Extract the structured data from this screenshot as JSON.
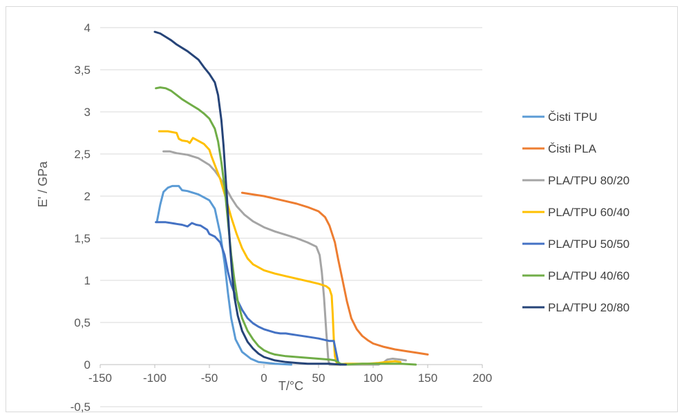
{
  "chart_data": {
    "type": "line",
    "xlabel": "T/°C",
    "ylabel": "E' / GPa",
    "xlim": [
      -150,
      200
    ],
    "ylim": [
      -0.5,
      4
    ],
    "x_ticks": [
      "-150",
      "-100",
      "-50",
      "0",
      "50",
      "100",
      "150",
      "200"
    ],
    "y_ticks": [
      "-0,5",
      "0",
      "0,5",
      "1",
      "1,5",
      "2",
      "2,5",
      "3",
      "3,5",
      "4"
    ],
    "legend_position": "right",
    "grid": "horizontal",
    "series": [
      {
        "name": "Čisti TPU",
        "color": "#5B9BD5",
        "points": [
          [
            -98,
            1.7
          ],
          [
            -95,
            1.9
          ],
          [
            -92,
            2.05
          ],
          [
            -88,
            2.1
          ],
          [
            -84,
            2.12
          ],
          [
            -78,
            2.12
          ],
          [
            -75,
            2.07
          ],
          [
            -70,
            2.06
          ],
          [
            -60,
            2.02
          ],
          [
            -50,
            1.95
          ],
          [
            -45,
            1.85
          ],
          [
            -40,
            1.55
          ],
          [
            -36,
            1.2
          ],
          [
            -33,
            0.85
          ],
          [
            -30,
            0.55
          ],
          [
            -26,
            0.3
          ],
          [
            -20,
            0.15
          ],
          [
            -12,
            0.07
          ],
          [
            -5,
            0.03
          ],
          [
            10,
            0.01
          ],
          [
            25,
            0
          ]
        ]
      },
      {
        "name": "Čisti PLA",
        "color": "#ED7D31",
        "points": [
          [
            -20,
            2.04
          ],
          [
            -10,
            2.02
          ],
          [
            0,
            2.0
          ],
          [
            10,
            1.97
          ],
          [
            20,
            1.94
          ],
          [
            30,
            1.91
          ],
          [
            40,
            1.87
          ],
          [
            50,
            1.82
          ],
          [
            56,
            1.75
          ],
          [
            60,
            1.65
          ],
          [
            65,
            1.45
          ],
          [
            68,
            1.25
          ],
          [
            72,
            1.0
          ],
          [
            76,
            0.75
          ],
          [
            80,
            0.55
          ],
          [
            85,
            0.42
          ],
          [
            90,
            0.34
          ],
          [
            95,
            0.29
          ],
          [
            100,
            0.25
          ],
          [
            110,
            0.21
          ],
          [
            120,
            0.18
          ],
          [
            130,
            0.16
          ],
          [
            140,
            0.14
          ],
          [
            150,
            0.12
          ]
        ]
      },
      {
        "name": "PLA/TPU 80/20",
        "color": "#A5A5A5",
        "points": [
          [
            -92,
            2.53
          ],
          [
            -86,
            2.53
          ],
          [
            -80,
            2.51
          ],
          [
            -70,
            2.49
          ],
          [
            -60,
            2.45
          ],
          [
            -50,
            2.37
          ],
          [
            -45,
            2.3
          ],
          [
            -40,
            2.21
          ],
          [
            -35,
            2.1
          ],
          [
            -30,
            1.98
          ],
          [
            -25,
            1.88
          ],
          [
            -18,
            1.78
          ],
          [
            -10,
            1.7
          ],
          [
            0,
            1.63
          ],
          [
            10,
            1.58
          ],
          [
            20,
            1.54
          ],
          [
            30,
            1.5
          ],
          [
            40,
            1.45
          ],
          [
            48,
            1.4
          ],
          [
            51,
            1.3
          ],
          [
            53,
            1.1
          ],
          [
            55,
            0.8
          ],
          [
            57,
            0.4
          ],
          [
            59,
            0.05
          ],
          [
            60,
            0
          ],
          [
            70,
            0
          ],
          [
            90,
            0
          ],
          [
            105,
            0
          ],
          [
            110,
            0.03
          ],
          [
            113,
            0.06
          ],
          [
            118,
            0.07
          ],
          [
            125,
            0.06
          ],
          [
            130,
            0.05
          ]
        ]
      },
      {
        "name": "PLA/TPU 60/40",
        "color": "#FFC000",
        "points": [
          [
            -96,
            2.77
          ],
          [
            -88,
            2.77
          ],
          [
            -80,
            2.75
          ],
          [
            -78,
            2.68
          ],
          [
            -75,
            2.66
          ],
          [
            -70,
            2.65
          ],
          [
            -68,
            2.63
          ],
          [
            -65,
            2.69
          ],
          [
            -62,
            2.67
          ],
          [
            -55,
            2.62
          ],
          [
            -50,
            2.55
          ],
          [
            -48,
            2.47
          ],
          [
            -45,
            2.37
          ],
          [
            -40,
            2.2
          ],
          [
            -35,
            1.98
          ],
          [
            -30,
            1.75
          ],
          [
            -25,
            1.55
          ],
          [
            -20,
            1.38
          ],
          [
            -15,
            1.26
          ],
          [
            -10,
            1.19
          ],
          [
            0,
            1.12
          ],
          [
            10,
            1.08
          ],
          [
            20,
            1.05
          ],
          [
            30,
            1.02
          ],
          [
            40,
            0.99
          ],
          [
            50,
            0.96
          ],
          [
            57,
            0.93
          ],
          [
            60,
            0.9
          ],
          [
            62,
            0.82
          ],
          [
            63,
            0.6
          ],
          [
            64,
            0.3
          ],
          [
            65,
            0.1
          ],
          [
            67,
            0
          ],
          [
            75,
            0.01
          ],
          [
            85,
            0.01
          ],
          [
            95,
            0.01
          ],
          [
            105,
            0.02
          ],
          [
            112,
            0.03
          ],
          [
            120,
            0.04
          ],
          [
            125,
            0.03
          ]
        ]
      },
      {
        "name": "PLA/TPU 50/50",
        "color": "#4472C4",
        "points": [
          [
            -99,
            1.69
          ],
          [
            -95,
            1.69
          ],
          [
            -90,
            1.69
          ],
          [
            -85,
            1.68
          ],
          [
            -80,
            1.67
          ],
          [
            -75,
            1.66
          ],
          [
            -70,
            1.64
          ],
          [
            -66,
            1.68
          ],
          [
            -62,
            1.66
          ],
          [
            -58,
            1.65
          ],
          [
            -52,
            1.6
          ],
          [
            -50,
            1.55
          ],
          [
            -45,
            1.52
          ],
          [
            -40,
            1.45
          ],
          [
            -36,
            1.3
          ],
          [
            -33,
            1.1
          ],
          [
            -30,
            0.95
          ],
          [
            -25,
            0.78
          ],
          [
            -20,
            0.65
          ],
          [
            -15,
            0.55
          ],
          [
            -10,
            0.49
          ],
          [
            -5,
            0.45
          ],
          [
            0,
            0.42
          ],
          [
            5,
            0.4
          ],
          [
            10,
            0.38
          ],
          [
            15,
            0.37
          ],
          [
            20,
            0.37
          ],
          [
            25,
            0.36
          ],
          [
            30,
            0.35
          ],
          [
            40,
            0.33
          ],
          [
            50,
            0.31
          ],
          [
            60,
            0.28
          ],
          [
            64,
            0.28
          ],
          [
            66,
            0.15
          ],
          [
            68,
            0.03
          ],
          [
            70,
            0
          ]
        ]
      },
      {
        "name": "PLA/TPU 40/60",
        "color": "#70AD47",
        "points": [
          [
            -99,
            3.28
          ],
          [
            -95,
            3.29
          ],
          [
            -90,
            3.28
          ],
          [
            -85,
            3.25
          ],
          [
            -80,
            3.2
          ],
          [
            -75,
            3.15
          ],
          [
            -70,
            3.11
          ],
          [
            -65,
            3.07
          ],
          [
            -60,
            3.03
          ],
          [
            -55,
            2.98
          ],
          [
            -50,
            2.92
          ],
          [
            -45,
            2.8
          ],
          [
            -42,
            2.65
          ],
          [
            -39,
            2.4
          ],
          [
            -36,
            2.1
          ],
          [
            -33,
            1.7
          ],
          [
            -30,
            1.3
          ],
          [
            -27,
            1.0
          ],
          [
            -24,
            0.75
          ],
          [
            -20,
            0.55
          ],
          [
            -15,
            0.4
          ],
          [
            -10,
            0.3
          ],
          [
            -5,
            0.22
          ],
          [
            0,
            0.17
          ],
          [
            5,
            0.14
          ],
          [
            10,
            0.12
          ],
          [
            20,
            0.1
          ],
          [
            30,
            0.09
          ],
          [
            40,
            0.08
          ],
          [
            50,
            0.07
          ],
          [
            60,
            0.06
          ],
          [
            65,
            0.05
          ],
          [
            70,
            0.01
          ],
          [
            75,
            0
          ],
          [
            90,
            0.01
          ],
          [
            105,
            0.01
          ],
          [
            115,
            0.01
          ],
          [
            125,
            0.01
          ],
          [
            139,
            0
          ]
        ]
      },
      {
        "name": "PLA/TPU 20/80",
        "color": "#264478",
        "points": [
          [
            -100,
            3.95
          ],
          [
            -95,
            3.93
          ],
          [
            -90,
            3.89
          ],
          [
            -85,
            3.85
          ],
          [
            -80,
            3.8
          ],
          [
            -75,
            3.76
          ],
          [
            -70,
            3.72
          ],
          [
            -65,
            3.67
          ],
          [
            -60,
            3.62
          ],
          [
            -55,
            3.53
          ],
          [
            -50,
            3.45
          ],
          [
            -45,
            3.35
          ],
          [
            -42,
            3.2
          ],
          [
            -39,
            2.9
          ],
          [
            -37,
            2.6
          ],
          [
            -35,
            2.2
          ],
          [
            -33,
            1.8
          ],
          [
            -31,
            1.4
          ],
          [
            -29,
            1.05
          ],
          [
            -27,
            0.8
          ],
          [
            -24,
            0.58
          ],
          [
            -20,
            0.4
          ],
          [
            -15,
            0.27
          ],
          [
            -10,
            0.19
          ],
          [
            -5,
            0.13
          ],
          [
            0,
            0.09
          ],
          [
            10,
            0.05
          ],
          [
            20,
            0.03
          ],
          [
            30,
            0.02
          ],
          [
            40,
            0.01
          ],
          [
            50,
            0.01
          ],
          [
            60,
            0.01
          ],
          [
            70,
            0
          ],
          [
            75,
            0
          ]
        ]
      }
    ]
  }
}
